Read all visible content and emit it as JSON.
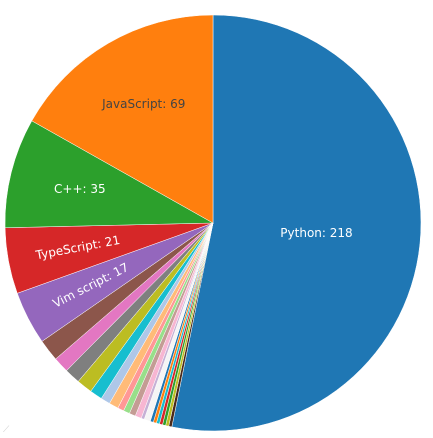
{
  "chart_data": {
    "type": "pie",
    "title": "",
    "start": "top, clockwise",
    "slices": [
      {
        "label": "Python",
        "value": 218,
        "color": "#1f77b4",
        "text_color": "#ffffff",
        "show_label": true,
        "label_text": "Python: 218"
      },
      {
        "label": "",
        "value": 1,
        "color": "#4a2a1a",
        "show_label": false
      },
      {
        "label": "",
        "value": 1,
        "color": "#bcbd22",
        "show_label": false
      },
      {
        "label": "",
        "value": 1,
        "color": "#2ca02c",
        "show_label": false
      },
      {
        "label": "",
        "value": 1,
        "color": "#d62728",
        "show_label": false
      },
      {
        "label": "",
        "value": 1,
        "color": "#17becf",
        "show_label": false
      },
      {
        "label": "",
        "value": 1,
        "color": "#ff7f0e",
        "show_label": false
      },
      {
        "label": "",
        "value": 1,
        "color": "#1f77b4",
        "show_label": false
      },
      {
        "label": "",
        "value": 2,
        "color": "#f5f5f5",
        "show_label": false
      },
      {
        "label": "",
        "value": 1,
        "color": "#c5b0d5",
        "show_label": false
      },
      {
        "label": "",
        "value": 2,
        "color": "#f7b6d2",
        "show_label": false
      },
      {
        "label": "",
        "value": 2,
        "color": "#c49c94",
        "show_label": false
      },
      {
        "label": "",
        "value": 2,
        "color": "#98df8a",
        "show_label": false
      },
      {
        "label": "",
        "value": 2,
        "color": "#ff9896",
        "show_label": false
      },
      {
        "label": "",
        "value": 3,
        "color": "#ffbb78",
        "show_label": false
      },
      {
        "label": "",
        "value": 3,
        "color": "#aec7e8",
        "show_label": false
      },
      {
        "label": "",
        "value": 4,
        "color": "#17becf",
        "show_label": false
      },
      {
        "label": "",
        "value": 5,
        "color": "#bcbd22",
        "show_label": false
      },
      {
        "label": "",
        "value": 5,
        "color": "#7f7f7f",
        "show_label": false
      },
      {
        "label": "",
        "value": 5,
        "color": "#e377c2",
        "show_label": false
      },
      {
        "label": "",
        "value": 7,
        "color": "#8c564b",
        "show_label": false
      },
      {
        "label": "Vim script",
        "value": 17,
        "color": "#9467bd",
        "text_color": "#ffffff",
        "show_label": true,
        "label_text": "Vim script: 17",
        "rotate_label": true
      },
      {
        "label": "TypeScript",
        "value": 21,
        "color": "#d62728",
        "text_color": "#ffffff",
        "show_label": true,
        "label_text": "TypeScript: 21",
        "rotate_label": true
      },
      {
        "label": "C++",
        "value": 35,
        "color": "#2ca02c",
        "text_color": "#ffffff",
        "show_label": true,
        "label_text": "C++: 35"
      },
      {
        "label": "JavaScript",
        "value": 69,
        "color": "#ff7f0e",
        "text_color": "#444444",
        "show_label": true,
        "label_text": "JavaScript: 69"
      }
    ]
  }
}
